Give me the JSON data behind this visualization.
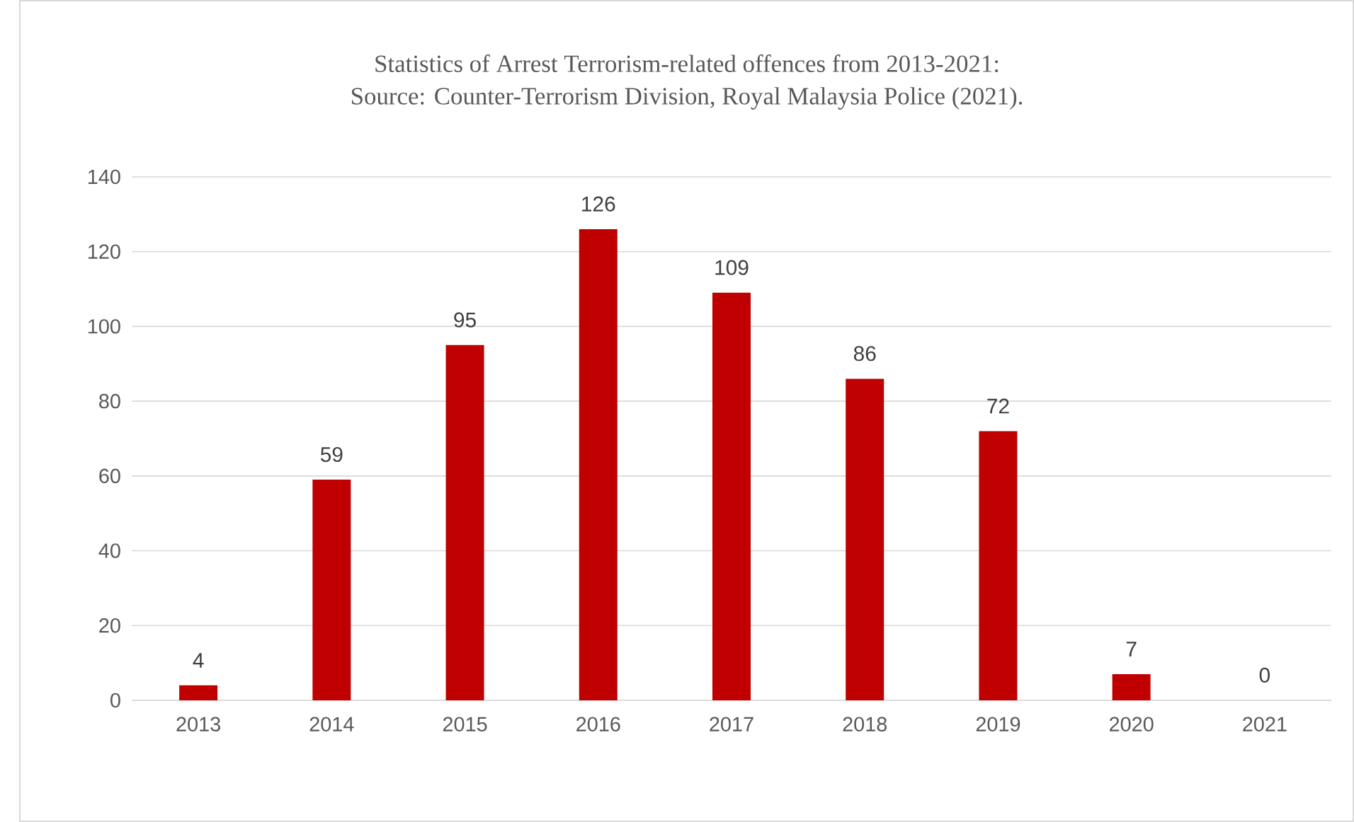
{
  "chart_data": {
    "type": "bar",
    "title": "Statistics of Arrest Terrorism-related offences from 2013-2021:",
    "subtitle": "Source: Counter-Terrorism Division, Royal Malaysia Police (2021).",
    "categories": [
      "2013",
      "2014",
      "2015",
      "2016",
      "2017",
      "2018",
      "2019",
      "2020",
      "2021"
    ],
    "values": [
      4,
      59,
      95,
      126,
      109,
      86,
      72,
      7,
      0
    ],
    "color": "#c00000",
    "ylim": [
      0,
      140
    ],
    "yticks": [
      0,
      20,
      40,
      60,
      80,
      100,
      120,
      140
    ],
    "grid": "y",
    "data_labels": true
  }
}
